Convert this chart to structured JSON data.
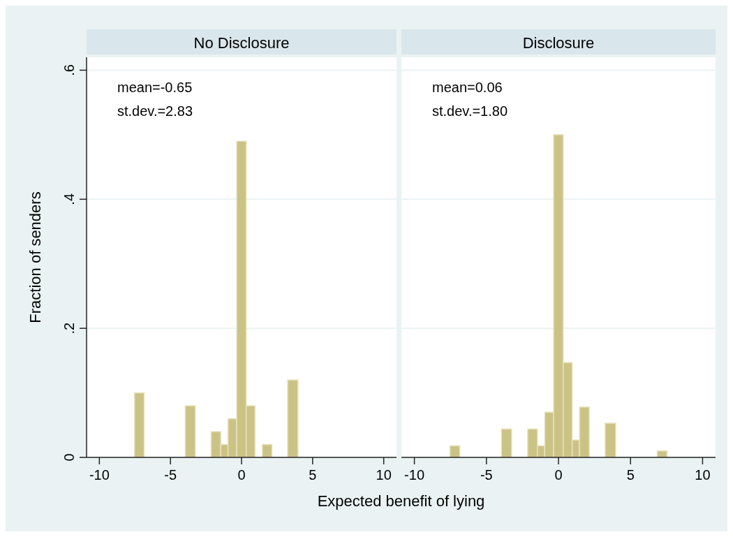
{
  "chart_data": [
    {
      "type": "histogram",
      "title": "No Disclosure",
      "ylabel": "Fraction of senders",
      "xlabel": "Expected benefit of lying",
      "bins": [
        -7.53,
        -6.85,
        -3.96,
        -3.25,
        -2.14,
        -1.46,
        -0.95,
        -0.34,
        0.33,
        0.95,
        1.46,
        2.14,
        3.24,
        3.97
      ],
      "values": [
        0.1,
        0,
        0.08,
        0,
        0.04,
        0.02,
        0.06,
        0.49,
        0.08,
        0,
        0.02,
        0,
        0.12
      ],
      "color": "#cbc385",
      "xlim": [
        -10.9,
        10.9
      ],
      "ylim": [
        0,
        0.62
      ],
      "xticks": [
        -10,
        -5,
        0,
        5,
        10
      ],
      "yticks": [
        0,
        {
          "value": 0.2,
          "label": ".2"
        },
        {
          "value": 0.4,
          "label": ".4"
        },
        {
          "value": 0.6,
          "label": ".6"
        }
      ],
      "grid": "y",
      "annotations": [
        "mean=-0.65",
        "st.dev.=2.83"
      ]
    },
    {
      "type": "histogram",
      "title": "Disclosure",
      "bins": [
        -7.53,
        -6.85,
        -3.96,
        -3.25,
        -2.14,
        -1.46,
        -0.95,
        -0.34,
        0.33,
        0.95,
        1.46,
        2.14,
        3.24,
        3.97,
        6.85,
        7.53
      ],
      "values": [
        0.018,
        0,
        0.044,
        0,
        0.044,
        0.018,
        0.07,
        0.5,
        0.147,
        0.027,
        0.078,
        0,
        0.053,
        0,
        0.01
      ],
      "color": "#cbc385",
      "xlim": [
        -10.9,
        10.9
      ],
      "ylim": [
        0,
        0.62
      ],
      "xticks": [
        -10,
        -5,
        0,
        5,
        10
      ],
      "yticks": [
        {
          "value": 0,
          "label": null
        },
        {
          "value": 0.2,
          "label": null
        },
        {
          "value": 0.4,
          "label": null
        },
        {
          "value": 0.6,
          "label": null
        }
      ],
      "grid": "y",
      "tick_labels": "x",
      "annotations": [
        "mean=0.06",
        "st.dev.=1.80"
      ]
    }
  ]
}
